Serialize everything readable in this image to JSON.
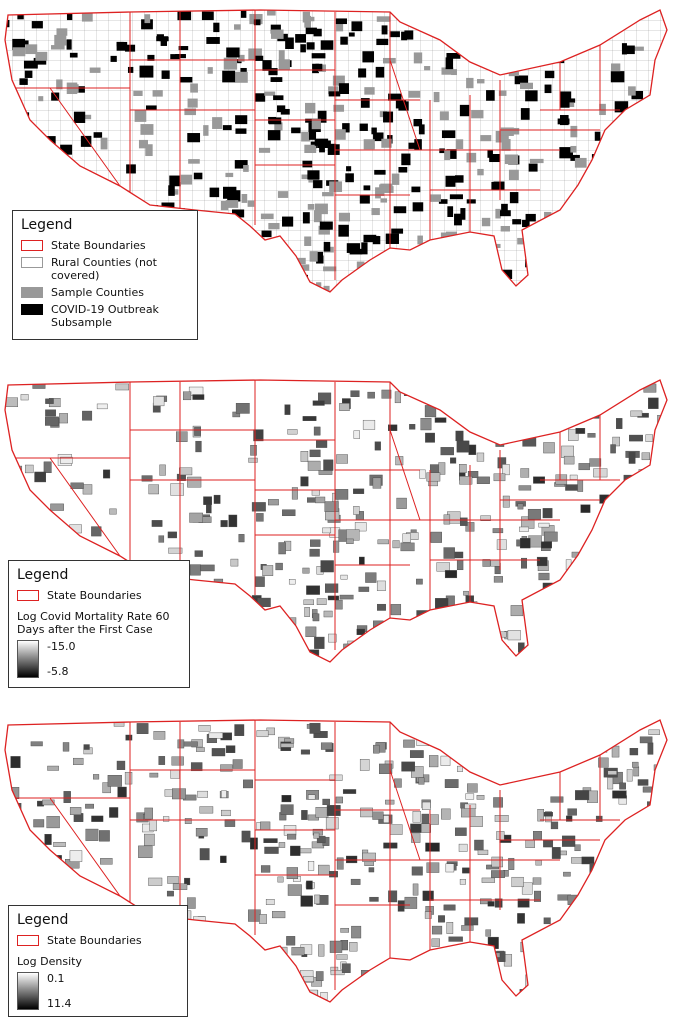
{
  "maps": [
    {
      "legend": {
        "title": "Legend",
        "items": [
          "State Boundaries",
          "Rural Counties (not covered)",
          "Sample Counties",
          "COVID-19 Outbreak Subsample"
        ]
      }
    },
    {
      "legend": {
        "title": "Legend",
        "items": [
          "State Boundaries"
        ]
      },
      "scale": {
        "title": "Log Covid Mortality Rate 60 Days after the First Case",
        "min": "-15.0",
        "max": "-5.8"
      }
    },
    {
      "legend": {
        "title": "Legend",
        "items": [
          "State Boundaries"
        ]
      },
      "scale": {
        "title": "Log Density",
        "min": "0.1",
        "max": "11.4"
      }
    }
  ]
}
